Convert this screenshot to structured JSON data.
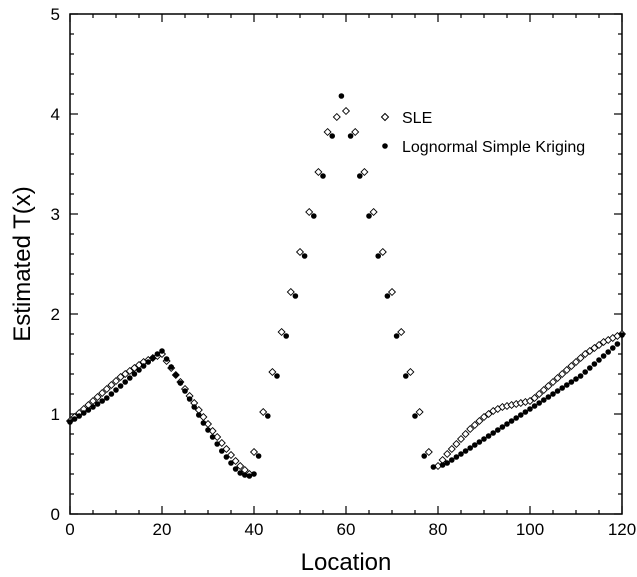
{
  "chart_data": {
    "type": "scatter",
    "title": "",
    "xlabel": "Location",
    "ylabel": "Estimated T(x)",
    "xlim": [
      0,
      120
    ],
    "ylim": [
      0,
      5
    ],
    "xticks": [
      0,
      20,
      40,
      60,
      80,
      100,
      120
    ],
    "xtick_labels": [
      "0",
      "20",
      "40",
      "60",
      "80",
      "100",
      "120"
    ],
    "yticks": [
      0,
      1,
      2,
      3,
      4,
      5
    ],
    "ytick_labels": [
      "0",
      "1",
      "2",
      "3",
      "4",
      "5"
    ],
    "grid": false,
    "legend_position": "top-right",
    "series": [
      {
        "name": "SLE",
        "marker": "open-diamond",
        "color": "#000000",
        "x": [
          0,
          1,
          2,
          3,
          4,
          5,
          6,
          7,
          8,
          9,
          10,
          11,
          12,
          13,
          14,
          15,
          16,
          17,
          18,
          19,
          20,
          21,
          22,
          23,
          24,
          25,
          26,
          27,
          28,
          29,
          30,
          31,
          32,
          33,
          34,
          35,
          36,
          37,
          38,
          39,
          40,
          42,
          44,
          46,
          48,
          50,
          52,
          54,
          56,
          58,
          60,
          62,
          64,
          66,
          68,
          70,
          72,
          74,
          76,
          78,
          80,
          81,
          82,
          83,
          84,
          85,
          86,
          87,
          88,
          89,
          90,
          91,
          92,
          93,
          94,
          95,
          96,
          97,
          98,
          99,
          100,
          101,
          102,
          103,
          104,
          105,
          106,
          107,
          108,
          109,
          110,
          111,
          112,
          113,
          114,
          115,
          116,
          117,
          118,
          119,
          120
        ],
        "y": [
          0.93,
          0.97,
          1.01,
          1.05,
          1.09,
          1.13,
          1.17,
          1.21,
          1.25,
          1.29,
          1.33,
          1.37,
          1.4,
          1.43,
          1.46,
          1.49,
          1.52,
          1.54,
          1.56,
          1.58,
          1.6,
          1.53,
          1.46,
          1.39,
          1.32,
          1.25,
          1.18,
          1.11,
          1.04,
          0.97,
          0.9,
          0.83,
          0.77,
          0.71,
          0.65,
          0.59,
          0.53,
          0.48,
          0.44,
          0.4,
          0.62,
          1.02,
          1.42,
          1.82,
          2.22,
          2.62,
          3.02,
          3.42,
          3.82,
          3.97,
          4.03,
          3.82,
          3.42,
          3.02,
          2.62,
          2.22,
          1.82,
          1.42,
          1.02,
          0.62,
          0.48,
          0.54,
          0.6,
          0.65,
          0.7,
          0.75,
          0.8,
          0.85,
          0.89,
          0.93,
          0.97,
          1.0,
          1.03,
          1.05,
          1.07,
          1.08,
          1.09,
          1.1,
          1.11,
          1.12,
          1.13,
          1.16,
          1.2,
          1.24,
          1.28,
          1.32,
          1.36,
          1.4,
          1.44,
          1.48,
          1.52,
          1.56,
          1.6,
          1.63,
          1.66,
          1.69,
          1.72,
          1.74,
          1.76,
          1.78,
          1.8
        ]
      },
      {
        "name": "Lognormal Simple Kriging",
        "marker": "filled-circle",
        "color": "#000000",
        "x": [
          0,
          1,
          2,
          3,
          4,
          5,
          6,
          7,
          8,
          9,
          10,
          11,
          12,
          13,
          14,
          15,
          16,
          17,
          18,
          19,
          20,
          21,
          22,
          23,
          24,
          25,
          26,
          27,
          28,
          29,
          30,
          31,
          32,
          33,
          34,
          35,
          36,
          37,
          38,
          39,
          40,
          41,
          43,
          45,
          47,
          49,
          51,
          53,
          55,
          57,
          59,
          61,
          63,
          65,
          67,
          69,
          71,
          73,
          75,
          77,
          79,
          81,
          82,
          83,
          84,
          85,
          86,
          87,
          88,
          89,
          90,
          91,
          92,
          93,
          94,
          95,
          96,
          97,
          98,
          99,
          100,
          101,
          102,
          103,
          104,
          105,
          106,
          107,
          108,
          109,
          110,
          111,
          112,
          113,
          114,
          115,
          116,
          117,
          118,
          119,
          120
        ],
        "y": [
          0.92,
          0.95,
          0.98,
          1.01,
          1.04,
          1.07,
          1.1,
          1.13,
          1.16,
          1.2,
          1.24,
          1.28,
          1.32,
          1.36,
          1.4,
          1.44,
          1.48,
          1.52,
          1.56,
          1.6,
          1.63,
          1.55,
          1.47,
          1.39,
          1.31,
          1.23,
          1.15,
          1.07,
          0.99,
          0.91,
          0.84,
          0.77,
          0.7,
          0.63,
          0.57,
          0.51,
          0.45,
          0.41,
          0.39,
          0.38,
          0.4,
          0.58,
          0.98,
          1.38,
          1.78,
          2.18,
          2.58,
          2.98,
          3.38,
          3.78,
          4.18,
          3.78,
          3.38,
          2.98,
          2.58,
          2.18,
          1.78,
          1.38,
          0.98,
          0.58,
          0.47,
          0.49,
          0.51,
          0.54,
          0.57,
          0.6,
          0.63,
          0.66,
          0.69,
          0.72,
          0.75,
          0.78,
          0.81,
          0.84,
          0.87,
          0.9,
          0.93,
          0.96,
          0.99,
          1.02,
          1.05,
          1.08,
          1.11,
          1.14,
          1.17,
          1.2,
          1.23,
          1.26,
          1.29,
          1.32,
          1.35,
          1.38,
          1.42,
          1.46,
          1.5,
          1.54,
          1.58,
          1.62,
          1.66,
          1.7,
          1.79
        ]
      }
    ]
  }
}
